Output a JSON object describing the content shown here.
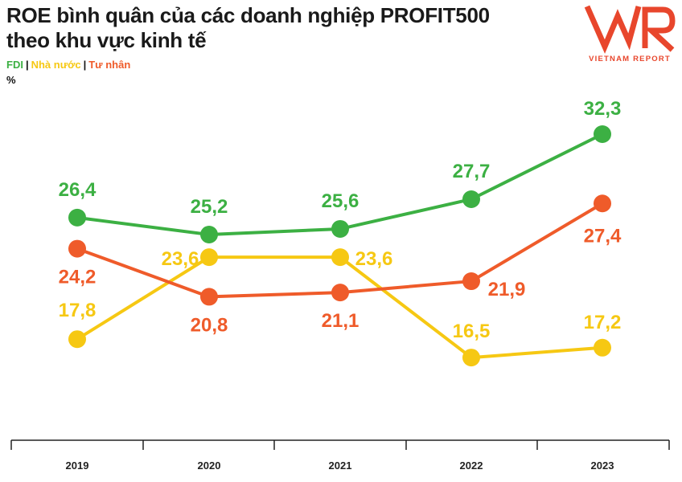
{
  "title_lines": [
    "ROE bình quân của các doanh nghiệp PROFIT500",
    "theo khu vực kinh tế"
  ],
  "unit": "%",
  "logo": {
    "text": "VIETNAM REPORT",
    "mark": "VNR"
  },
  "colors": {
    "FDI": "#3cb043",
    "Nhà nước": "#f6c813",
    "Tư nhân": "#ef5b2a"
  },
  "chart_data": {
    "type": "line",
    "title": "ROE bình quân của các doanh nghiệp PROFIT500 theo khu vực kinh tế",
    "ylabel": "%",
    "categories": [
      "2019",
      "2020",
      "2021",
      "2022",
      "2023"
    ],
    "ylim": [
      15,
      33
    ],
    "legend_position": "top-left",
    "grid": false,
    "series": [
      {
        "name": "FDI",
        "values": [
          26.4,
          25.2,
          25.6,
          27.7,
          32.3
        ],
        "labels": [
          "26,4",
          "25,2",
          "25,6",
          "27,7",
          "32,3"
        ]
      },
      {
        "name": "Nhà nước",
        "values": [
          17.8,
          23.6,
          23.6,
          16.5,
          17.2
        ],
        "labels": [
          "17,8",
          "23,6",
          "23,6",
          "16,5",
          "17,2"
        ]
      },
      {
        "name": "Tư nhân",
        "values": [
          24.2,
          20.8,
          21.1,
          21.9,
          27.4
        ],
        "labels": [
          "24,2",
          "20,8",
          "21,1",
          "21,9",
          "27,4"
        ]
      }
    ]
  }
}
